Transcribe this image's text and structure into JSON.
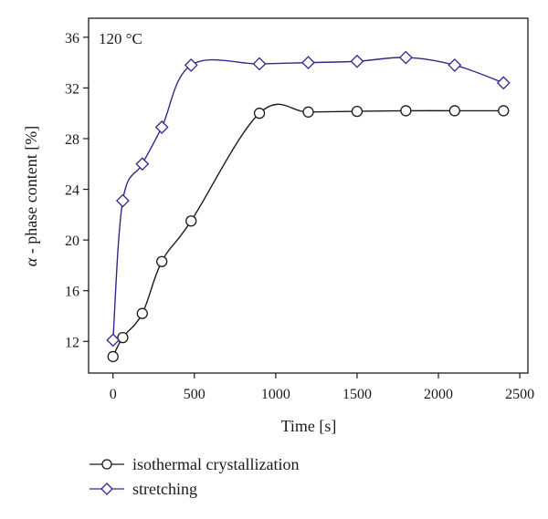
{
  "chart_data": {
    "type": "line",
    "annotation": "120 °C",
    "xlabel": "Time [s]",
    "ylabel_symbol": "α",
    "ylabel_rest": " - phase content [%]",
    "xlim": [
      -150,
      2550
    ],
    "ylim": [
      9.5,
      37.5
    ],
    "xticks": [
      0,
      500,
      1000,
      1500,
      2000,
      2500
    ],
    "yticks": [
      12,
      16,
      20,
      24,
      28,
      32,
      36
    ],
    "grid": false,
    "legend_position": "bottom-left",
    "series": [
      {
        "name": "isothermal crystallization",
        "marker": "circle",
        "color": "#1a1a1a",
        "x": [
          0,
          60,
          180,
          300,
          480,
          900,
          1200,
          1500,
          1800,
          2100,
          2400
        ],
        "y": [
          10.8,
          12.3,
          14.2,
          18.3,
          21.5,
          30.0,
          30.1,
          30.15,
          30.2,
          30.2,
          30.2
        ]
      },
      {
        "name": "stretching",
        "marker": "diamond",
        "color": "#2e2a8c",
        "x": [
          0,
          60,
          180,
          300,
          480,
          900,
          1200,
          1500,
          1800,
          2100,
          2400
        ],
        "y": [
          12.1,
          23.1,
          26.0,
          28.9,
          33.8,
          33.9,
          34.0,
          34.1,
          34.4,
          33.8,
          32.4
        ]
      }
    ]
  }
}
